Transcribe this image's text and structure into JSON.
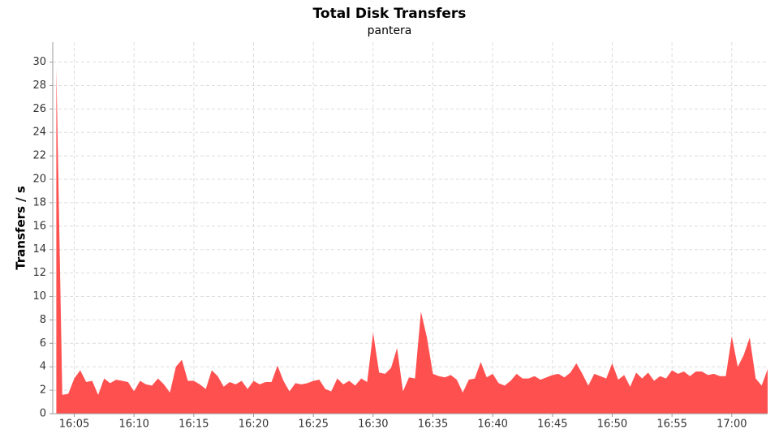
{
  "chart_data": {
    "type": "area",
    "title": "Total Disk Transfers",
    "subtitle": "pantera",
    "y_label": "Transfers / s",
    "color": "#ff5050",
    "grid": true,
    "x": [
      "16:03:30",
      "16:04:00",
      "16:04:30",
      "16:05:00",
      "16:05:30",
      "16:06:00",
      "16:06:30",
      "16:07:00",
      "16:07:30",
      "16:08:00",
      "16:08:30",
      "16:09:00",
      "16:09:30",
      "16:10:00",
      "16:10:30",
      "16:11:00",
      "16:11:30",
      "16:12:00",
      "16:12:30",
      "16:13:00",
      "16:13:30",
      "16:14:00",
      "16:14:30",
      "16:15:00",
      "16:15:30",
      "16:16:00",
      "16:16:30",
      "16:17:00",
      "16:17:30",
      "16:18:00",
      "16:18:30",
      "16:19:00",
      "16:19:30",
      "16:20:00",
      "16:20:30",
      "16:21:00",
      "16:21:30",
      "16:22:00",
      "16:22:30",
      "16:23:00",
      "16:23:30",
      "16:24:00",
      "16:24:30",
      "16:25:00",
      "16:25:30",
      "16:26:00",
      "16:26:30",
      "16:27:00",
      "16:27:30",
      "16:28:00",
      "16:28:30",
      "16:29:00",
      "16:29:30",
      "16:30:00",
      "16:30:30",
      "16:31:00",
      "16:31:30",
      "16:32:00",
      "16:32:30",
      "16:33:00",
      "16:33:30",
      "16:34:00",
      "16:34:30",
      "16:35:00",
      "16:35:30",
      "16:36:00",
      "16:36:30",
      "16:37:00",
      "16:37:30",
      "16:38:00",
      "16:38:30",
      "16:39:00",
      "16:39:30",
      "16:40:00",
      "16:40:30",
      "16:41:00",
      "16:41:30",
      "16:42:00",
      "16:42:30",
      "16:43:00",
      "16:43:30",
      "16:44:00",
      "16:44:30",
      "16:45:00",
      "16:45:30",
      "16:46:00",
      "16:46:30",
      "16:47:00",
      "16:47:30",
      "16:48:00",
      "16:48:30",
      "16:49:00",
      "16:49:30",
      "16:50:00",
      "16:50:30",
      "16:51:00",
      "16:51:30",
      "16:52:00",
      "16:52:30",
      "16:53:00",
      "16:53:30",
      "16:54:00",
      "16:54:30",
      "16:55:00",
      "16:55:30",
      "16:56:00",
      "16:56:30",
      "16:57:00",
      "16:57:30",
      "16:58:00",
      "16:58:30",
      "16:59:00",
      "16:59:30",
      "17:00:00",
      "17:00:30",
      "17:01:00",
      "17:01:30",
      "17:02:00",
      "17:02:30",
      "17:03:00"
    ],
    "values": [
      29.5,
      1.6,
      1.7,
      3.0,
      3.7,
      2.7,
      2.8,
      1.6,
      3.0,
      2.6,
      2.9,
      2.8,
      2.7,
      1.9,
      2.8,
      2.5,
      2.4,
      3.0,
      2.5,
      1.8,
      4.0,
      4.6,
      2.8,
      2.8,
      2.5,
      2.1,
      3.7,
      3.2,
      2.3,
      2.7,
      2.5,
      2.8,
      2.1,
      2.8,
      2.5,
      2.7,
      2.7,
      4.1,
      2.8,
      1.9,
      2.6,
      2.5,
      2.6,
      2.8,
      2.9,
      2.1,
      1.9,
      3.0,
      2.5,
      2.8,
      2.4,
      3.0,
      2.7,
      6.9,
      3.5,
      3.4,
      3.9,
      5.6,
      1.9,
      3.1,
      3.0,
      8.7,
      6.5,
      3.4,
      3.2,
      3.1,
      3.3,
      2.9,
      1.8,
      2.9,
      3.0,
      4.4,
      3.1,
      3.4,
      2.6,
      2.4,
      2.8,
      3.4,
      3.0,
      3.0,
      3.2,
      2.9,
      3.1,
      3.3,
      3.4,
      3.1,
      3.5,
      4.3,
      3.4,
      2.4,
      3.4,
      3.2,
      3.0,
      4.3,
      2.9,
      3.3,
      2.3,
      3.5,
      3.0,
      3.5,
      2.8,
      3.2,
      3.0,
      3.7,
      3.4,
      3.6,
      3.2,
      3.6,
      3.6,
      3.3,
      3.4,
      3.2,
      3.2,
      6.6,
      4.0,
      5.0,
      6.5,
      3.0,
      2.4,
      3.8
    ],
    "xlim": [
      "16:03:12",
      "17:03:00"
    ],
    "xticks": [
      "16:05",
      "16:10",
      "16:15",
      "16:20",
      "16:25",
      "16:30",
      "16:35",
      "16:40",
      "16:45",
      "16:50",
      "16:55",
      "17:00"
    ],
    "ylim": [
      0,
      31.7
    ],
    "yticks": [
      0,
      2,
      4,
      6,
      8,
      10,
      12,
      14,
      16,
      18,
      20,
      22,
      24,
      26,
      28,
      30
    ]
  }
}
